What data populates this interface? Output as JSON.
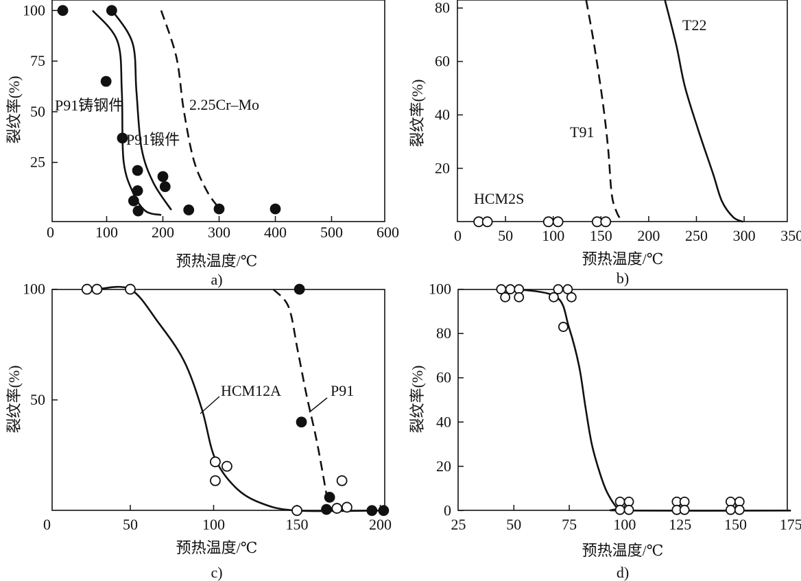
{
  "chart_data": [
    {
      "id": "a",
      "type": "scatter",
      "caption": "a)",
      "xlabel": "预热温度/℃",
      "ylabel": "裂纹率(%)",
      "xlim": [
        0,
        600
      ],
      "ylim": [
        0,
        100
      ],
      "xticks": [
        0,
        100,
        200,
        300,
        400,
        500,
        600
      ],
      "yticks": [
        25,
        50,
        75,
        100
      ],
      "grid": false,
      "series": [
        {
          "name": "points",
          "kind": "filled",
          "x": [
            22,
            109,
            99,
            128,
            155,
            155,
            148,
            156,
            200,
            204,
            246,
            300,
            400
          ],
          "y": [
            100,
            100,
            65,
            37,
            21,
            11,
            6,
            1,
            18,
            13,
            1.5,
            2,
            2
          ]
        },
        {
          "name": "P91铸钢件",
          "kind": "solid",
          "x": [
            75,
            119,
            127,
            130,
            147,
            169,
            197
          ],
          "y": [
            100,
            85,
            60,
            26,
            10,
            1,
            -1
          ]
        },
        {
          "name": "P91锻件",
          "kind": "solid",
          "x": [
            110,
            146,
            153,
            162,
            183,
            215
          ],
          "y": [
            100,
            84,
            60,
            32,
            15,
            1.5
          ]
        },
        {
          "name": "2.25Cr–Mo",
          "kind": "dashed",
          "x": [
            197,
            224,
            237,
            255,
            278,
            298
          ],
          "y": [
            100,
            77,
            51,
            26,
            11,
            3
          ]
        }
      ],
      "annotations": [
        "P91铸钢件",
        "P91锻件",
        "2.25Cr–Mo"
      ]
    },
    {
      "id": "b",
      "type": "line",
      "caption": "b)",
      "xlabel": "预热温度/℃",
      "ylabel": "裂纹率(%)",
      "xlim": [
        0,
        350
      ],
      "ylim": [
        0,
        80
      ],
      "xticks": [
        0,
        50,
        100,
        150,
        200,
        250,
        300,
        350
      ],
      "yticks": [
        20,
        40,
        60,
        80
      ],
      "grid": false,
      "series": [
        {
          "name": "HCM2S",
          "kind": "open",
          "x": [
            22,
            31,
            95,
            105,
            146,
            155
          ],
          "y": [
            0,
            0,
            0,
            0,
            0,
            0
          ]
        },
        {
          "name": "T91",
          "kind": "dashed",
          "x": [
            134.5,
            143,
            152,
            157.5,
            161.3,
            166.7,
            172.6
          ],
          "y": [
            83,
            66,
            44.5,
            27.4,
            10.3,
            3.4,
            0
          ]
        },
        {
          "name": "T22",
          "kind": "solid",
          "x": [
            217,
            229,
            238,
            252.8,
            267.4,
            276.7,
            288.6,
            299
          ],
          "y": [
            83,
            66,
            50.5,
            33.4,
            18,
            7.7,
            1.7,
            0
          ]
        }
      ],
      "annotations": [
        "HCM2S",
        "T91",
        "T22"
      ]
    },
    {
      "id": "c",
      "type": "scatter",
      "caption": "c)",
      "xlabel": "预热温度/℃",
      "ylabel": "裂纹率(%)",
      "xlim": [
        0,
        200
      ],
      "ylim": [
        0,
        100
      ],
      "xticks": [
        0,
        50,
        100,
        150,
        200
      ],
      "yticks": [
        50,
        100
      ],
      "grid": false,
      "series": [
        {
          "name": "HCM12A points",
          "kind": "open",
          "x": [
            24,
            30,
            50,
            101,
            108,
            101,
            150,
            177,
            174,
            180
          ],
          "y": [
            100,
            100,
            100,
            22,
            20,
            13.5,
            0,
            13.5,
            1,
            1.5
          ]
        },
        {
          "name": "P91 points",
          "kind": "filled",
          "x": [
            151.5,
            152.7,
            169.6,
            167.7,
            195,
            202
          ],
          "y": [
            100,
            40,
            6,
            0.5,
            0,
            0
          ]
        },
        {
          "name": "HCM12A",
          "kind": "solid",
          "x": [
            30,
            50,
            66.8,
            82.3,
            93,
            100.6,
            112.8,
            128,
            150,
            202
          ],
          "y": [
            100,
            100,
            85,
            67.5,
            45.7,
            24,
            10.7,
            3.5,
            0,
            0
          ]
        },
        {
          "name": "P91",
          "kind": "dashed",
          "x": [
            135.8,
            145,
            150.4,
            155.8,
            162,
            168.5
          ],
          "y": [
            100,
            92,
            72.6,
            52,
            31,
            4
          ]
        }
      ],
      "annotations": [
        "HCM12A",
        "P91"
      ]
    },
    {
      "id": "d",
      "type": "scatter",
      "caption": "d)",
      "xlabel": "预热温度/℃",
      "ylabel": "裂纹率(%)",
      "xlim": [
        25,
        175
      ],
      "ylim": [
        0,
        100
      ],
      "xticks": [
        25,
        50,
        75,
        100,
        125,
        150,
        175
      ],
      "yticks": [
        0,
        20,
        40,
        60,
        80,
        100
      ],
      "grid": false,
      "series": [
        {
          "name": "points",
          "kind": "open",
          "x": [
            44.3,
            48.4,
            52.3,
            46.1,
            52.3,
            70,
            74.3,
            68,
            76,
            72.3,
            97.9,
            101.9,
            97.9,
            101.9,
            123.5,
            127,
            123.5,
            127,
            147.8,
            151.8,
            147.8,
            151.8
          ],
          "y": [
            100,
            100,
            100,
            96.4,
            96.4,
            100,
            100,
            96.4,
            96.4,
            83,
            4,
            4,
            0.3,
            0.3,
            4,
            4,
            0.3,
            0.3,
            4,
            4,
            0.3,
            0.3
          ]
        },
        {
          "name": "curve",
          "kind": "solid",
          "x": [
            52,
            69.4,
            74.8,
            79.4,
            82.3,
            85.1,
            88.5,
            91.9,
            96.5,
            100,
            175
          ],
          "y": [
            100,
            96.4,
            83,
            65.4,
            46.8,
            30.3,
            17.9,
            8.6,
            1.3,
            0,
            0
          ]
        }
      ]
    }
  ]
}
